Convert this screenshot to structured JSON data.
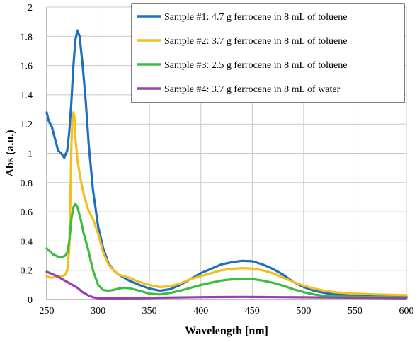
{
  "chart_data": {
    "type": "line",
    "xlabel": "Wavelength [nm]",
    "ylabel": "Abs (a.u.)",
    "xlim": [
      250,
      600
    ],
    "ylim": [
      0,
      2
    ],
    "x_ticks": [
      "250",
      "300",
      "350",
      "400",
      "450",
      "500",
      "550",
      "600"
    ],
    "y_ticks": [
      "0",
      "0.2",
      "0.4",
      "0.6",
      "0.8",
      "1",
      "1.2",
      "1.4",
      "1.6",
      "1.8",
      "2"
    ],
    "grid": true,
    "legend_position": "top-right",
    "series": [
      {
        "name": "Sample #1: 4.7 g ferrocene in 8 mL of toluene",
        "color": "#1f6fbf",
        "points": [
          [
            250,
            1.28
          ],
          [
            252,
            1.22
          ],
          [
            255,
            1.18
          ],
          [
            258,
            1.1
          ],
          [
            261,
            1.02
          ],
          [
            264,
            1.0
          ],
          [
            267,
            0.97
          ],
          [
            270,
            1.02
          ],
          [
            272,
            1.15
          ],
          [
            274,
            1.35
          ],
          [
            276,
            1.6
          ],
          [
            278,
            1.78
          ],
          [
            280,
            1.84
          ],
          [
            282,
            1.8
          ],
          [
            285,
            1.6
          ],
          [
            288,
            1.35
          ],
          [
            291,
            1.05
          ],
          [
            295,
            0.75
          ],
          [
            300,
            0.5
          ],
          [
            305,
            0.35
          ],
          [
            310,
            0.25
          ],
          [
            315,
            0.2
          ],
          [
            320,
            0.17
          ],
          [
            325,
            0.15
          ],
          [
            330,
            0.13
          ],
          [
            340,
            0.1
          ],
          [
            350,
            0.075
          ],
          [
            360,
            0.06
          ],
          [
            370,
            0.07
          ],
          [
            380,
            0.1
          ],
          [
            390,
            0.14
          ],
          [
            400,
            0.18
          ],
          [
            410,
            0.21
          ],
          [
            420,
            0.24
          ],
          [
            430,
            0.255
          ],
          [
            440,
            0.265
          ],
          [
            450,
            0.262
          ],
          [
            460,
            0.24
          ],
          [
            470,
            0.21
          ],
          [
            480,
            0.17
          ],
          [
            490,
            0.12
          ],
          [
            500,
            0.085
          ],
          [
            510,
            0.06
          ],
          [
            520,
            0.045
          ],
          [
            530,
            0.035
          ],
          [
            550,
            0.025
          ],
          [
            570,
            0.022
          ],
          [
            600,
            0.02
          ]
        ]
      },
      {
        "name": "Sample #2: 3.7 g ferrocene in 8 mL of toluene",
        "color": "#f5be1f",
        "points": [
          [
            250,
            0.16
          ],
          [
            253,
            0.15
          ],
          [
            256,
            0.15
          ],
          [
            259,
            0.155
          ],
          [
            262,
            0.16
          ],
          [
            265,
            0.16
          ],
          [
            268,
            0.17
          ],
          [
            270,
            0.2
          ],
          [
            272,
            0.35
          ],
          [
            273,
            0.7
          ],
          [
            274,
            1.05
          ],
          [
            275,
            1.22
          ],
          [
            276,
            1.28
          ],
          [
            277,
            1.25
          ],
          [
            278,
            1.1
          ],
          [
            280,
            0.95
          ],
          [
            283,
            0.82
          ],
          [
            286,
            0.72
          ],
          [
            290,
            0.62
          ],
          [
            295,
            0.55
          ],
          [
            300,
            0.45
          ],
          [
            305,
            0.32
          ],
          [
            310,
            0.24
          ],
          [
            315,
            0.2
          ],
          [
            320,
            0.17
          ],
          [
            330,
            0.15
          ],
          [
            340,
            0.12
          ],
          [
            350,
            0.1
          ],
          [
            360,
            0.085
          ],
          [
            370,
            0.09
          ],
          [
            380,
            0.11
          ],
          [
            390,
            0.14
          ],
          [
            400,
            0.16
          ],
          [
            410,
            0.18
          ],
          [
            420,
            0.2
          ],
          [
            430,
            0.21
          ],
          [
            440,
            0.215
          ],
          [
            450,
            0.212
          ],
          [
            460,
            0.2
          ],
          [
            470,
            0.18
          ],
          [
            480,
            0.15
          ],
          [
            490,
            0.12
          ],
          [
            500,
            0.095
          ],
          [
            510,
            0.075
          ],
          [
            520,
            0.06
          ],
          [
            530,
            0.05
          ],
          [
            550,
            0.04
          ],
          [
            570,
            0.035
          ],
          [
            600,
            0.03
          ]
        ]
      },
      {
        "name": "Sample #3: 2.5 g ferrocene in 8 mL of toluene",
        "color": "#3dbd3d",
        "points": [
          [
            250,
            0.35
          ],
          [
            253,
            0.33
          ],
          [
            256,
            0.31
          ],
          [
            259,
            0.3
          ],
          [
            262,
            0.29
          ],
          [
            265,
            0.29
          ],
          [
            268,
            0.3
          ],
          [
            270,
            0.32
          ],
          [
            272,
            0.4
          ],
          [
            274,
            0.55
          ],
          [
            276,
            0.63
          ],
          [
            278,
            0.655
          ],
          [
            280,
            0.63
          ],
          [
            283,
            0.55
          ],
          [
            286,
            0.45
          ],
          [
            290,
            0.35
          ],
          [
            295,
            0.2
          ],
          [
            300,
            0.1
          ],
          [
            305,
            0.065
          ],
          [
            310,
            0.06
          ],
          [
            315,
            0.065
          ],
          [
            320,
            0.075
          ],
          [
            325,
            0.08
          ],
          [
            330,
            0.078
          ],
          [
            340,
            0.06
          ],
          [
            350,
            0.04
          ],
          [
            360,
            0.035
          ],
          [
            370,
            0.045
          ],
          [
            380,
            0.06
          ],
          [
            390,
            0.08
          ],
          [
            400,
            0.1
          ],
          [
            410,
            0.115
          ],
          [
            420,
            0.13
          ],
          [
            430,
            0.138
          ],
          [
            440,
            0.142
          ],
          [
            450,
            0.14
          ],
          [
            460,
            0.13
          ],
          [
            470,
            0.115
          ],
          [
            480,
            0.095
          ],
          [
            490,
            0.07
          ],
          [
            500,
            0.05
          ],
          [
            510,
            0.035
          ],
          [
            520,
            0.025
          ],
          [
            530,
            0.02
          ],
          [
            550,
            0.018
          ],
          [
            600,
            0.015
          ]
        ]
      },
      {
        "name": "Sample #4: 3.7 g ferrocene in 8 mL of water",
        "color": "#9b3fb0",
        "points": [
          [
            250,
            0.19
          ],
          [
            255,
            0.175
          ],
          [
            260,
            0.16
          ],
          [
            265,
            0.14
          ],
          [
            270,
            0.12
          ],
          [
            275,
            0.1
          ],
          [
            280,
            0.08
          ],
          [
            285,
            0.05
          ],
          [
            290,
            0.03
          ],
          [
            295,
            0.015
          ],
          [
            300,
            0.01
          ],
          [
            310,
            0.008
          ],
          [
            320,
            0.008
          ],
          [
            340,
            0.01
          ],
          [
            360,
            0.012
          ],
          [
            380,
            0.014
          ],
          [
            400,
            0.016
          ],
          [
            420,
            0.017
          ],
          [
            440,
            0.018
          ],
          [
            460,
            0.017
          ],
          [
            480,
            0.016
          ],
          [
            500,
            0.015
          ],
          [
            530,
            0.013
          ],
          [
            560,
            0.012
          ],
          [
            600,
            0.01
          ]
        ]
      }
    ]
  }
}
